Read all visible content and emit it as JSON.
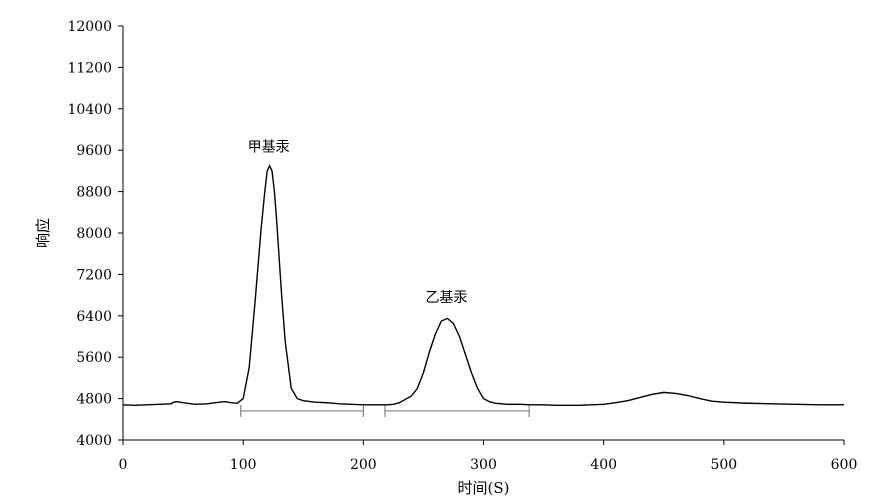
{
  "chart_data": {
    "type": "line",
    "title": "",
    "xlabel": "时间(S)",
    "ylabel": "响应",
    "xlim": [
      0,
      600
    ],
    "ylim": [
      4000,
      12000
    ],
    "xticks": [
      0,
      100,
      200,
      300,
      400,
      500,
      600
    ],
    "yticks": [
      4000,
      4800,
      5600,
      6400,
      7200,
      8000,
      8800,
      9600,
      10400,
      11200,
      12000
    ],
    "grid": false,
    "series": [
      {
        "x": [
          0,
          10,
          20,
          30,
          40,
          42,
          45,
          50,
          60,
          70,
          80,
          85,
          90,
          95,
          100,
          105,
          110,
          115,
          118,
          120,
          122,
          124,
          126,
          128,
          130,
          132,
          135,
          140,
          145,
          150,
          160,
          170,
          180,
          190,
          200,
          210,
          220,
          225,
          230,
          240,
          245,
          250,
          255,
          260,
          265,
          270,
          275,
          280,
          285,
          290,
          295,
          300,
          305,
          310,
          320,
          330,
          340,
          350,
          360,
          380,
          400,
          410,
          420,
          430,
          440,
          450,
          460,
          470,
          480,
          490,
          500,
          520,
          540,
          560,
          580,
          600
        ],
        "y": [
          4680,
          4670,
          4680,
          4690,
          4700,
          4730,
          4740,
          4720,
          4690,
          4700,
          4730,
          4740,
          4720,
          4710,
          4800,
          5400,
          6700,
          8100,
          8800,
          9200,
          9300,
          9200,
          8800,
          8200,
          7500,
          6800,
          5900,
          5000,
          4800,
          4760,
          4730,
          4720,
          4700,
          4690,
          4680,
          4680,
          4680,
          4690,
          4720,
          4850,
          5000,
          5300,
          5700,
          6050,
          6300,
          6350,
          6250,
          6000,
          5650,
          5300,
          5000,
          4800,
          4740,
          4710,
          4690,
          4690,
          4680,
          4680,
          4670,
          4670,
          4690,
          4720,
          4760,
          4820,
          4880,
          4920,
          4900,
          4860,
          4800,
          4750,
          4730,
          4710,
          4700,
          4690,
          4680,
          4680
        ]
      }
    ],
    "annotations": [
      {
        "text": "甲基汞",
        "x": 122,
        "y": 9300
      },
      {
        "text": "乙基汞",
        "x": 270,
        "y": 6400
      }
    ],
    "integration_ranges": [
      {
        "x_start": 98,
        "x_end": 200,
        "y": 4620
      },
      {
        "x_start": 218,
        "x_end": 338,
        "y": 4620
      }
    ],
    "colors": {
      "line": "#000000",
      "axis": "#000000",
      "integration": "#808080"
    }
  }
}
